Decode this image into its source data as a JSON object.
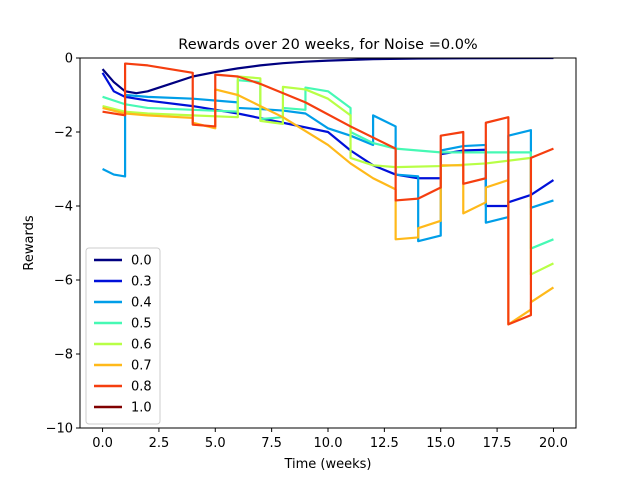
{
  "chart_data": {
    "type": "line",
    "title": "Rewards over 20 weeks, for Noise =0.0%",
    "xlabel": "Time (weeks)",
    "ylabel": "Rewards",
    "xlim": [
      -1,
      21
    ],
    "ylim": [
      -10,
      0
    ],
    "xticks": [
      0,
      2.5,
      5,
      7.5,
      10,
      12.5,
      15,
      17.5,
      20
    ],
    "xtick_labels": [
      "0.0",
      "2.5",
      "5.0",
      "7.5",
      "10.0",
      "12.5",
      "15.0",
      "17.5",
      "20.0"
    ],
    "yticks": [
      0,
      -2,
      -4,
      -6,
      -8,
      -10
    ],
    "ytick_labels": [
      "0",
      "−2",
      "−4",
      "−6",
      "−8",
      "−10"
    ],
    "grid": false,
    "legend_position": "lower-left",
    "series": [
      {
        "name": "0.0",
        "color": "#000080",
        "points": [
          [
            0,
            -0.3
          ],
          [
            0.5,
            -0.65
          ],
          [
            1,
            -0.9
          ],
          [
            1.5,
            -0.95
          ],
          [
            2,
            -0.9
          ],
          [
            3,
            -0.7
          ],
          [
            4,
            -0.5
          ],
          [
            5,
            -0.38
          ],
          [
            6,
            -0.28
          ],
          [
            7,
            -0.2
          ],
          [
            8,
            -0.14
          ],
          [
            9,
            -0.1
          ],
          [
            10,
            -0.07
          ],
          [
            12,
            -0.03
          ],
          [
            14,
            -0.015
          ],
          [
            16,
            -0.008
          ],
          [
            18,
            -0.004
          ],
          [
            20,
            -0.002
          ]
        ]
      },
      {
        "name": "0.3",
        "color": "#0010d9",
        "points": [
          [
            0,
            -0.4
          ],
          [
            0.5,
            -0.9
          ],
          [
            1,
            -1.05
          ],
          [
            2,
            -1.15
          ],
          [
            4,
            -1.3
          ],
          [
            6,
            -1.5
          ],
          [
            8,
            -1.75
          ],
          [
            10,
            -2.0
          ],
          [
            11,
            -2.5
          ],
          [
            12,
            -2.9
          ],
          [
            13,
            -3.15
          ],
          [
            14,
            -3.25
          ],
          [
            15,
            -3.25
          ],
          [
            15,
            -2.6
          ],
          [
            16,
            -2.5
          ],
          [
            17,
            -2.48
          ],
          [
            17,
            -4.0
          ],
          [
            18,
            -4.0
          ],
          [
            18,
            -3.9
          ],
          [
            19,
            -3.7
          ],
          [
            20,
            -3.3
          ]
        ]
      },
      {
        "name": "0.4",
        "color": "#009ee8",
        "points": [
          [
            0,
            -3.0
          ],
          [
            0.5,
            -3.15
          ],
          [
            1,
            -3.2
          ],
          [
            1,
            -1.0
          ],
          [
            2,
            -1.05
          ],
          [
            4,
            -1.1
          ],
          [
            6,
            -1.2
          ],
          [
            6,
            -1.35
          ],
          [
            7,
            -1.38
          ],
          [
            8,
            -1.42
          ],
          [
            9,
            -1.5
          ],
          [
            10,
            -1.9
          ],
          [
            11,
            -2.1
          ],
          [
            12,
            -2.35
          ],
          [
            12,
            -1.55
          ],
          [
            13,
            -1.85
          ],
          [
            13,
            -3.15
          ],
          [
            14,
            -3.2
          ],
          [
            14,
            -4.95
          ],
          [
            15,
            -4.8
          ],
          [
            15,
            -2.5
          ],
          [
            16,
            -2.38
          ],
          [
            17,
            -2.35
          ],
          [
            17,
            -4.45
          ],
          [
            18,
            -4.3
          ],
          [
            18,
            -2.1
          ],
          [
            19,
            -1.95
          ],
          [
            19,
            -4.05
          ],
          [
            20,
            -3.85
          ]
        ]
      },
      {
        "name": "0.5",
        "color": "#46f9b4",
        "points": [
          [
            0,
            -1.05
          ],
          [
            1,
            -1.25
          ],
          [
            2,
            -1.35
          ],
          [
            4,
            -1.4
          ],
          [
            6,
            -1.45
          ],
          [
            6,
            -0.6
          ],
          [
            7,
            -0.65
          ],
          [
            7,
            -1.65
          ],
          [
            8,
            -1.6
          ],
          [
            8,
            -1.35
          ],
          [
            9,
            -1.4
          ],
          [
            9,
            -0.8
          ],
          [
            10,
            -0.9
          ],
          [
            11,
            -1.35
          ],
          [
            11,
            -2.0
          ],
          [
            12,
            -2.3
          ],
          [
            13,
            -2.45
          ],
          [
            15,
            -2.55
          ],
          [
            17,
            -2.55
          ],
          [
            19,
            -2.55
          ],
          [
            19,
            -5.15
          ],
          [
            20,
            -4.9
          ]
        ]
      },
      {
        "name": "0.6",
        "color": "#b8ff46",
        "points": [
          [
            0,
            -1.3
          ],
          [
            1,
            -1.45
          ],
          [
            2,
            -1.5
          ],
          [
            4,
            -1.55
          ],
          [
            6,
            -1.6
          ],
          [
            6,
            -0.5
          ],
          [
            7,
            -0.55
          ],
          [
            7,
            -1.7
          ],
          [
            8,
            -1.78
          ],
          [
            8,
            -0.78
          ],
          [
            9,
            -0.85
          ],
          [
            10,
            -1.1
          ],
          [
            11,
            -1.55
          ],
          [
            11,
            -2.7
          ],
          [
            12,
            -2.9
          ],
          [
            13,
            -2.95
          ],
          [
            15,
            -2.92
          ],
          [
            17,
            -2.85
          ],
          [
            19,
            -2.7
          ],
          [
            19,
            -5.85
          ],
          [
            20,
            -5.55
          ]
        ]
      },
      {
        "name": "0.7",
        "color": "#ffb91a",
        "points": [
          [
            0,
            -1.35
          ],
          [
            1,
            -1.5
          ],
          [
            2,
            -1.55
          ],
          [
            4,
            -1.62
          ],
          [
            4,
            -1.75
          ],
          [
            5,
            -1.9
          ],
          [
            5,
            -0.85
          ],
          [
            6,
            -1.0
          ],
          [
            8,
            -1.6
          ],
          [
            10,
            -2.35
          ],
          [
            11,
            -2.85
          ],
          [
            12,
            -3.25
          ],
          [
            13,
            -3.55
          ],
          [
            13,
            -4.9
          ],
          [
            14,
            -4.85
          ],
          [
            14,
            -4.6
          ],
          [
            15,
            -4.4
          ],
          [
            15,
            -2.9
          ],
          [
            16,
            -2.9
          ],
          [
            16,
            -4.2
          ],
          [
            17,
            -3.9
          ],
          [
            17,
            -3.5
          ],
          [
            18,
            -3.3
          ],
          [
            18,
            -7.2
          ],
          [
            19,
            -6.8
          ],
          [
            19,
            -6.6
          ],
          [
            20,
            -6.2
          ]
        ]
      },
      {
        "name": "0.8",
        "color": "#f53e0f",
        "points": [
          [
            0,
            -1.45
          ],
          [
            1,
            -1.55
          ],
          [
            1,
            -0.15
          ],
          [
            2,
            -0.2
          ],
          [
            4,
            -0.4
          ],
          [
            4,
            -1.8
          ],
          [
            5,
            -1.85
          ],
          [
            5,
            -0.45
          ],
          [
            6,
            -0.5
          ],
          [
            7,
            -0.7
          ],
          [
            9,
            -1.2
          ],
          [
            11,
            -1.85
          ],
          [
            13,
            -2.45
          ],
          [
            13,
            -3.85
          ],
          [
            14,
            -3.8
          ],
          [
            15,
            -3.5
          ],
          [
            15,
            -2.1
          ],
          [
            16,
            -2.0
          ],
          [
            16,
            -3.4
          ],
          [
            17,
            -3.25
          ],
          [
            17,
            -1.75
          ],
          [
            18,
            -1.6
          ],
          [
            18,
            -7.2
          ],
          [
            19,
            -6.95
          ],
          [
            19,
            -2.7
          ],
          [
            20,
            -2.45
          ]
        ]
      },
      {
        "name": "1.0",
        "color": "#800000",
        "points": []
      }
    ]
  }
}
